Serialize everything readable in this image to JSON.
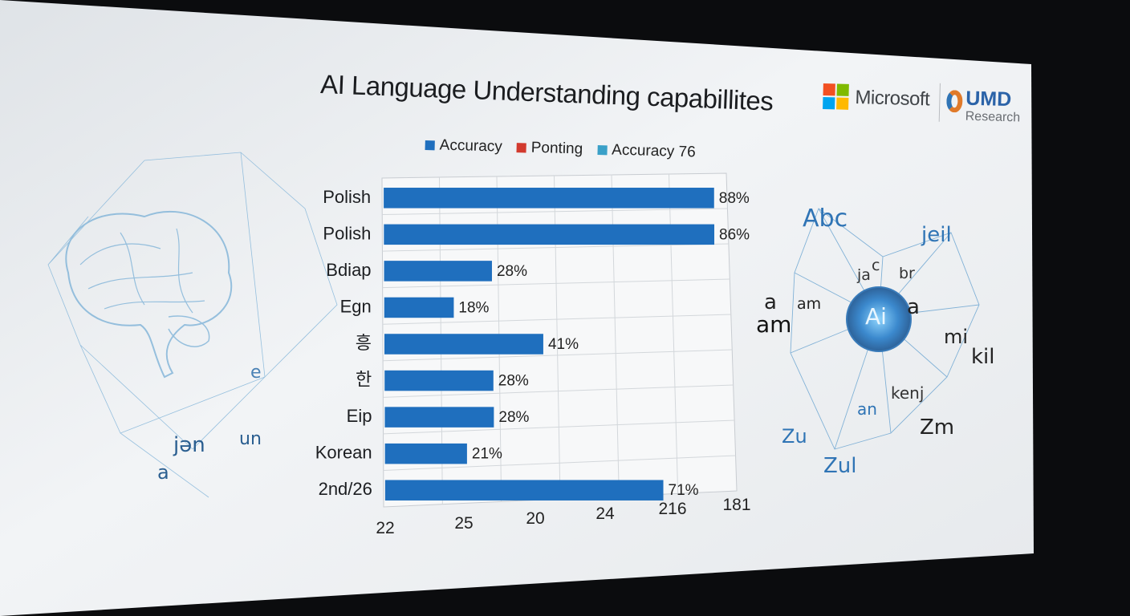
{
  "title": "AI Language Understanding capabillites",
  "legend": [
    {
      "label": "Accuracy",
      "color": "#1f6fbe"
    },
    {
      "label": "Ponting",
      "color": "#d23a2e"
    },
    {
      "label": "Accuracy 76",
      "color": "#3aa0c8"
    }
  ],
  "brand": {
    "microsoft": "Microsoft",
    "umd": "UMD",
    "umd_sub": "Research",
    "ms_colors": [
      "#f25022",
      "#7fba00",
      "#00a4ef",
      "#ffb900"
    ]
  },
  "chart_data": {
    "type": "bar",
    "orientation": "horizontal",
    "categories": [
      "Polish",
      "Polish",
      "Bdiap",
      "Egn",
      "흥",
      "한",
      "Eip",
      "Korean",
      "2nd/26"
    ],
    "series": [
      {
        "name": "Accuracy",
        "values": [
          88,
          86,
          28,
          18,
          41,
          28,
          28,
          21,
          71
        ],
        "labels": [
          "88%",
          "86%",
          "28%",
          "18%",
          "41%",
          "28%",
          "28%",
          "21%",
          "71%"
        ]
      }
    ],
    "x_ticks": [
      "22",
      "25",
      "20",
      "24",
      "216",
      "181"
    ],
    "grid": true,
    "legend_position": "top",
    "bar_color": "#1f6fbe"
  },
  "decorations": {
    "left_glyphs": [
      "e",
      "jən",
      "un",
      "a"
    ],
    "right_glyphs": [
      "Abc",
      "jeil",
      "ja",
      "br",
      "a",
      "am",
      "am",
      "Ai",
      "a",
      "mi",
      "kil",
      "kenj",
      "an",
      "Zm",
      "Zu",
      "Zul",
      "c"
    ]
  }
}
